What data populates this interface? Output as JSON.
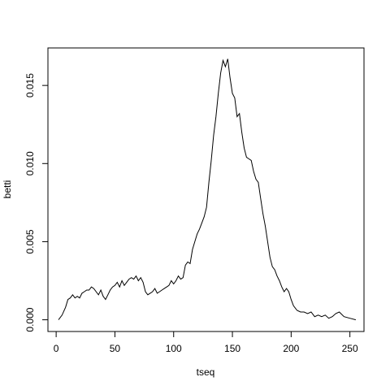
{
  "chart_data": {
    "type": "line",
    "title": "",
    "xlabel": "tseq",
    "ylabel": "betti",
    "xlim": [
      -7,
      262
    ],
    "ylim": [
      -0.00075,
      0.0174
    ],
    "xticks": [
      0,
      50,
      100,
      150,
      200,
      250
    ],
    "xtick_labels": [
      "0",
      "50",
      "100",
      "150",
      "200",
      "250"
    ],
    "yticks": [
      0.0,
      0.005,
      0.01,
      0.015
    ],
    "ytick_labels": [
      "0.000",
      "0.005",
      "0.010",
      "0.015"
    ],
    "grid": false,
    "legend": "none",
    "line_color": "#000000",
    "series": [
      {
        "x": [
          2,
          5,
          8,
          10,
          12,
          14,
          16,
          18,
          20,
          22,
          24,
          26,
          28,
          30,
          32,
          34,
          36,
          38,
          40,
          42,
          44,
          46,
          48,
          50,
          52,
          54,
          56,
          58,
          60,
          62,
          64,
          66,
          68,
          70,
          72,
          74,
          76,
          78,
          80,
          82,
          84,
          86,
          88,
          90,
          92,
          94,
          96,
          98,
          100,
          102,
          104,
          106,
          108,
          110,
          112,
          114,
          116,
          118,
          120,
          122,
          124,
          126,
          128,
          130,
          132,
          134,
          136,
          138,
          140,
          142,
          144,
          146,
          148,
          150,
          152,
          154,
          156,
          158,
          160,
          162,
          164,
          166,
          168,
          170,
          172,
          174,
          176,
          178,
          180,
          182,
          184,
          186,
          188,
          190,
          192,
          194,
          196,
          198,
          200,
          202,
          205,
          208,
          211,
          214,
          217,
          220,
          223,
          226,
          229,
          232,
          235,
          238,
          241,
          245,
          250,
          255
        ],
        "y": [
          0.0,
          0.0003,
          0.0008,
          0.0013,
          0.0014,
          0.0016,
          0.0014,
          0.0015,
          0.0014,
          0.0017,
          0.0018,
          0.0019,
          0.0019,
          0.0021,
          0.002,
          0.0018,
          0.0016,
          0.0019,
          0.0015,
          0.0013,
          0.0016,
          0.0019,
          0.0021,
          0.0022,
          0.0024,
          0.0021,
          0.0025,
          0.0022,
          0.0024,
          0.0026,
          0.0027,
          0.0026,
          0.0028,
          0.0025,
          0.0027,
          0.0024,
          0.0018,
          0.0016,
          0.0017,
          0.0018,
          0.002,
          0.0017,
          0.0018,
          0.0019,
          0.002,
          0.0021,
          0.0022,
          0.0025,
          0.0023,
          0.0025,
          0.0028,
          0.0026,
          0.0027,
          0.0035,
          0.0037,
          0.0036,
          0.0045,
          0.005,
          0.0055,
          0.0058,
          0.0062,
          0.0066,
          0.0072,
          0.0088,
          0.0102,
          0.0118,
          0.013,
          0.0145,
          0.0158,
          0.0166,
          0.0162,
          0.0167,
          0.0155,
          0.0145,
          0.0142,
          0.013,
          0.0132,
          0.012,
          0.011,
          0.0104,
          0.0103,
          0.0102,
          0.0095,
          0.009,
          0.0088,
          0.0078,
          0.0068,
          0.006,
          0.005,
          0.004,
          0.0034,
          0.0032,
          0.0028,
          0.0025,
          0.0021,
          0.0018,
          0.002,
          0.0018,
          0.0013,
          0.0009,
          0.0006,
          0.0005,
          0.0005,
          0.0004,
          0.0005,
          0.0002,
          0.0003,
          0.0002,
          0.0003,
          0.0001,
          0.0002,
          0.0004,
          0.0005,
          0.0002,
          0.0001,
          0.0
        ]
      }
    ]
  }
}
